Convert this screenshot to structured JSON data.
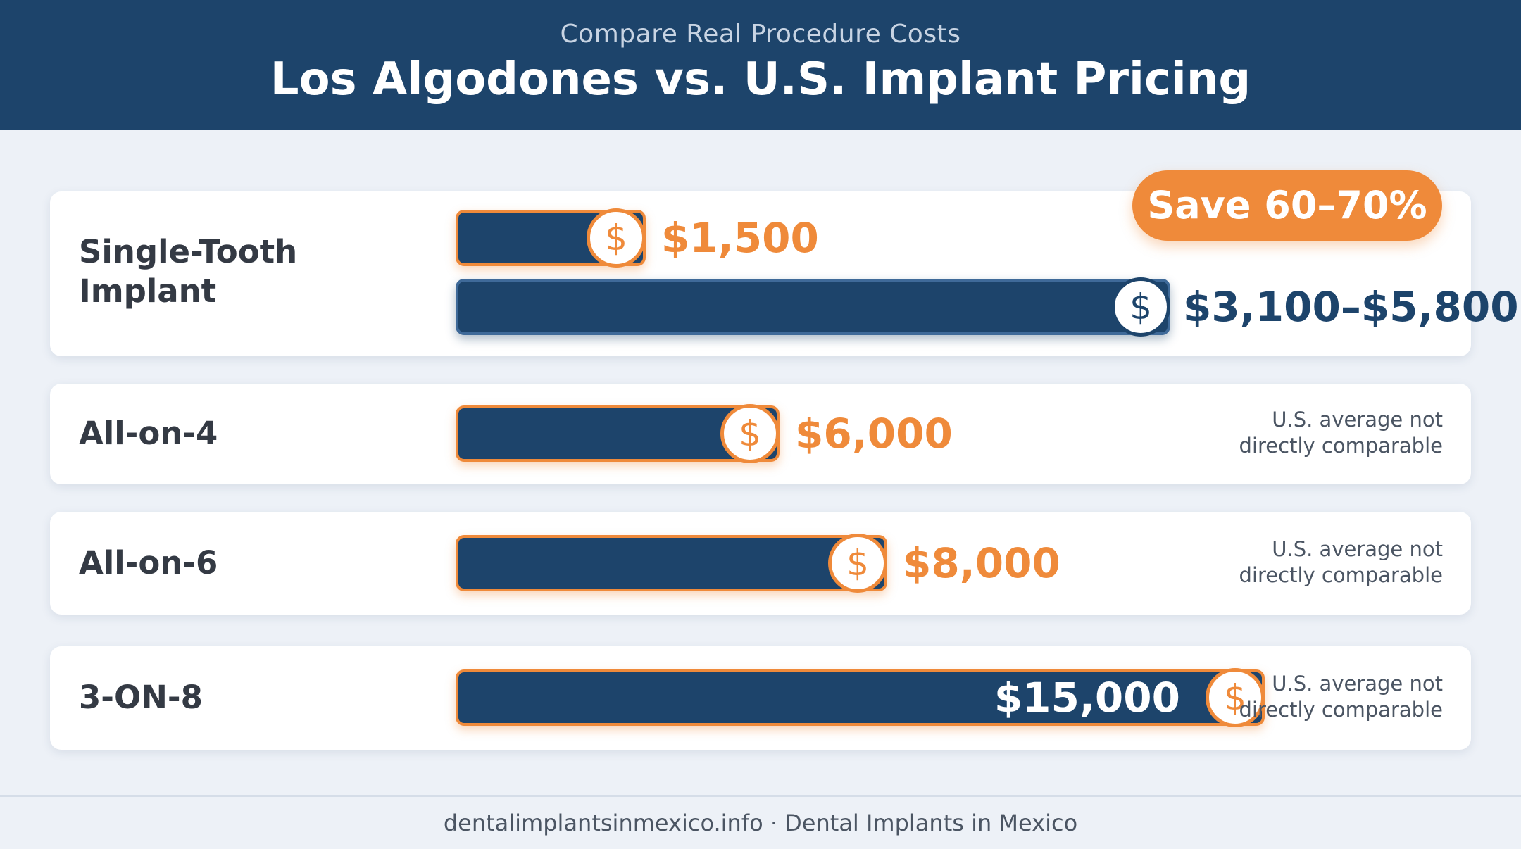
{
  "header": {
    "subtitle": "Compare Real Procedure Costs",
    "title": "Los Algodones vs. U.S. Implant Pricing"
  },
  "badge": {
    "label": "Save 60–70%"
  },
  "rows": [
    {
      "label_line1": "Single-Tooth",
      "label_line2": "Implant",
      "mexico_price": "$1,500",
      "us_price": "$3,100–$5,800"
    },
    {
      "label": "All-on-4",
      "mexico_price": "$6,000",
      "note_line1": "U.S. average not",
      "note_line2": "directly comparable"
    },
    {
      "label": "All-on-6",
      "mexico_price": "$8,000",
      "note_line1": "U.S. average not",
      "note_line2": "directly comparable"
    },
    {
      "label": "3-ON-8",
      "mexico_price": "$15,000",
      "note_line1": "U.S. average not",
      "note_line2": "directly comparable"
    }
  ],
  "coin_symbol": "$",
  "footer": {
    "text": "dentalimplantsinmexico.info · Dental Implants in Mexico"
  },
  "colors": {
    "navy": "#1d446b",
    "orange": "#ef8a3a",
    "background": "#edf1f7"
  },
  "chart_data": {
    "type": "bar",
    "orientation": "horizontal",
    "title": "Los Algodones vs. U.S. Implant Pricing",
    "subtitle": "Compare Real Procedure Costs",
    "categories": [
      "Single-Tooth Implant",
      "All-on-4",
      "All-on-6",
      "3-ON-8"
    ],
    "series": [
      {
        "values": [
          1500,
          6000,
          8000,
          15000
        ],
        "labels": [
          "$1,500",
          "$6,000",
          "$8,000",
          "$15,000"
        ]
      },
      {
        "values": [
          5800,
          null,
          null,
          null
        ],
        "range_low": [
          3100,
          null,
          null,
          null
        ],
        "labels": [
          "$3,100–$5,800",
          null,
          null,
          null
        ]
      }
    ],
    "annotation": "Save 60–70%",
    "notes": [
      "U.S. average not directly comparable"
    ],
    "grid": false,
    "legend": "none"
  }
}
